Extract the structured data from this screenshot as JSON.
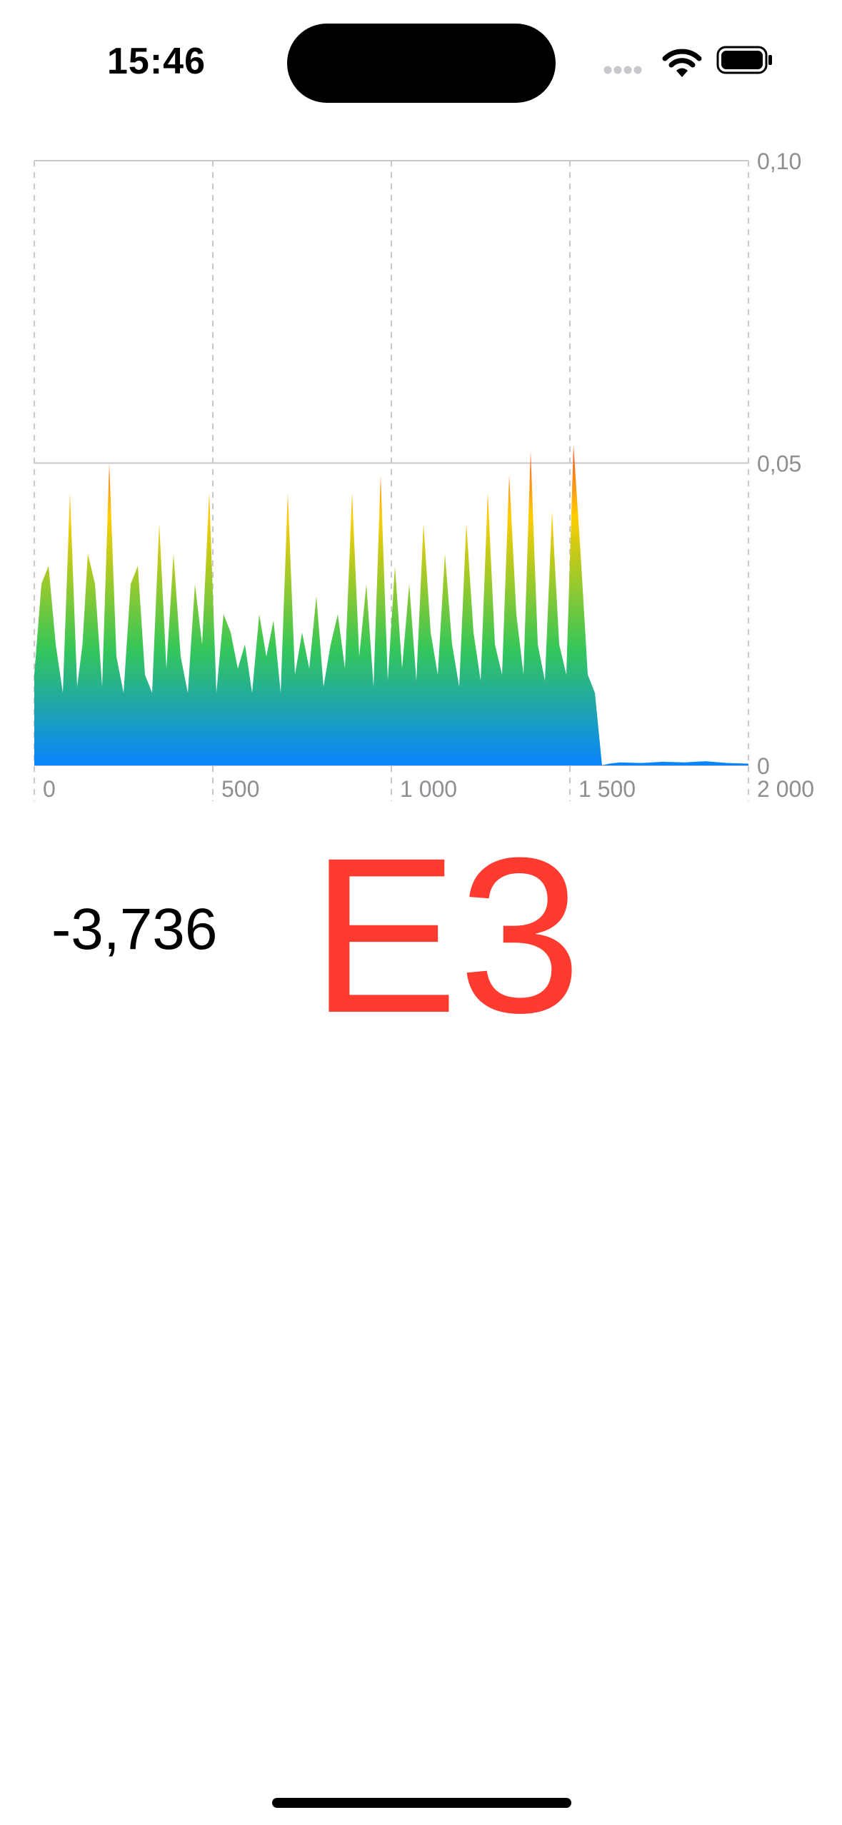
{
  "status_bar": {
    "time": "15:46",
    "icons": [
      "cellular-signal-icon",
      "wifi-icon",
      "battery-icon"
    ]
  },
  "tuner": {
    "reading": "-3,736",
    "note": "E3"
  },
  "colors": {
    "note": "#ff3b30",
    "gradient_low": "#0a84ff",
    "gradient_mid": "#34c759",
    "gradient_high": "#ffcc00",
    "gradient_peak": "#ff3b30",
    "grid": "#c7c7cc",
    "axis_label": "#8e8e93"
  },
  "chart_data": {
    "type": "area",
    "x_ticks": [
      "0",
      "500",
      "1 000",
      "1 500",
      "2 000"
    ],
    "x_tick_values": [
      0,
      500,
      1000,
      1500,
      2000
    ],
    "y_ticks": [
      "0",
      "0,05",
      "0,10"
    ],
    "y_tick_values": [
      0,
      0.05,
      0.1
    ],
    "xlim": [
      0,
      2000
    ],
    "ylim": [
      0,
      0.1
    ],
    "y_axis_side": "right",
    "grid": true,
    "series": [
      {
        "x": [
          0,
          20,
          40,
          60,
          80,
          100,
          120,
          135,
          150,
          170,
          190,
          210,
          230,
          250,
          270,
          290,
          310,
          330,
          350,
          370,
          390,
          410,
          430,
          450,
          470,
          490,
          510,
          530,
          550,
          570,
          590,
          610,
          630,
          650,
          670,
          690,
          710,
          730,
          750,
          770,
          790,
          810,
          830,
          850,
          870,
          890,
          910,
          930,
          950,
          970,
          990,
          1010,
          1030,
          1050,
          1070,
          1090,
          1110,
          1130,
          1150,
          1170,
          1190,
          1210,
          1230,
          1250,
          1270,
          1290,
          1310,
          1330,
          1350,
          1370,
          1390,
          1410,
          1430,
          1450,
          1470,
          1490,
          1510,
          1530,
          1550,
          1570,
          1590,
          1610,
          1640,
          1700,
          1760,
          1820,
          1880,
          1940,
          2000
        ],
        "y": [
          0.015,
          0.03,
          0.033,
          0.02,
          0.012,
          0.045,
          0.013,
          0.02,
          0.035,
          0.03,
          0.013,
          0.05,
          0.018,
          0.012,
          0.03,
          0.033,
          0.015,
          0.012,
          0.04,
          0.016,
          0.035,
          0.018,
          0.012,
          0.03,
          0.02,
          0.045,
          0.012,
          0.025,
          0.022,
          0.016,
          0.02,
          0.012,
          0.025,
          0.018,
          0.024,
          0.012,
          0.045,
          0.015,
          0.022,
          0.016,
          0.028,
          0.013,
          0.02,
          0.025,
          0.016,
          0.045,
          0.018,
          0.03,
          0.013,
          0.048,
          0.014,
          0.033,
          0.016,
          0.03,
          0.014,
          0.04,
          0.022,
          0.015,
          0.035,
          0.02,
          0.013,
          0.04,
          0.022,
          0.014,
          0.045,
          0.02,
          0.015,
          0.048,
          0.025,
          0.015,
          0.052,
          0.02,
          0.014,
          0.042,
          0.02,
          0.015,
          0.053,
          0.035,
          0.015,
          0.012,
          0.0,
          0.0003,
          0.0005,
          0.0004,
          0.0006,
          0.0005,
          0.0007,
          0.0004,
          0.0003
        ]
      }
    ]
  }
}
